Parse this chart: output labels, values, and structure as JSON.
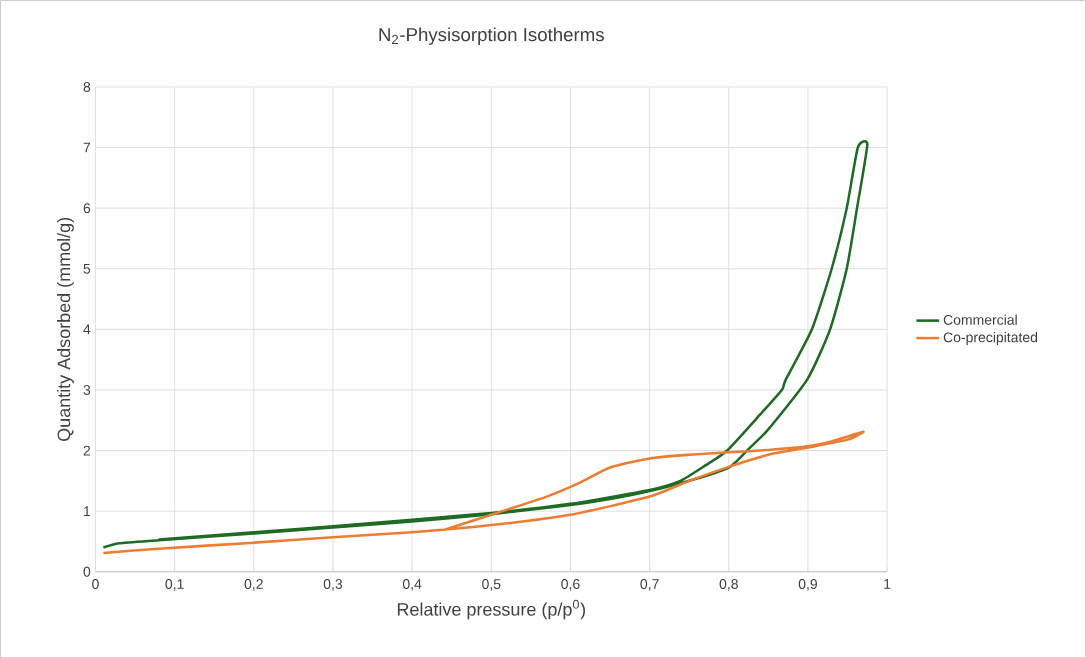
{
  "chart_data": {
    "type": "line",
    "title": "N$_{2}$-Physisorption Isotherms",
    "xlabel": "Relative pressure (p/p$^{0}$)",
    "ylabel": "Quantity Adsorbed (mmol/g)",
    "xlim": [
      0,
      1
    ],
    "ylim": [
      0,
      8
    ],
    "xticks": [
      0,
      {
        "value": 0.1,
        "label": "0,1"
      },
      {
        "value": 0.2,
        "label": "0,2"
      },
      {
        "value": 0.3,
        "label": "0,3"
      },
      {
        "value": 0.4,
        "label": "0,4"
      },
      {
        "value": 0.5,
        "label": "0,5"
      },
      {
        "value": 0.6,
        "label": "0,6"
      },
      {
        "value": 0.7,
        "label": "0,7"
      },
      {
        "value": 0.8,
        "label": "0,8"
      },
      {
        "value": 0.9,
        "label": "0,9"
      },
      1
    ],
    "yticks": [
      0,
      1,
      2,
      3,
      4,
      5,
      6,
      7,
      8
    ],
    "grid": true,
    "legend": "right",
    "marker": "none",
    "line_style": "solid",
    "series": [
      {
        "name": "Commercial",
        "color": "#1e6b24",
        "x": [
          0.01,
          0.03,
          0.08,
          0.2,
          0.3,
          0.4,
          0.5,
          0.6,
          0.65,
          0.7,
          0.75,
          0.8,
          0.823,
          0.85,
          0.899,
          0.928,
          0.949,
          0.962,
          0.975,
          0.963,
          0.949,
          0.93,
          0.905,
          0.872,
          0.867,
          0.84,
          0.798,
          0.77,
          0.739,
          0.7,
          0.6,
          0.5,
          0.3,
          0.2,
          0.08
        ],
        "values": [
          0.4,
          0.47,
          0.52,
          0.63,
          0.73,
          0.83,
          0.95,
          1.1,
          1.2,
          1.33,
          1.5,
          1.72,
          2.0,
          2.35,
          3.17,
          4.0,
          5.0,
          6.0,
          7.05,
          7.0,
          6.0,
          5.0,
          4.0,
          3.17,
          3.0,
          2.6,
          2.0,
          1.75,
          1.5,
          1.35,
          1.12,
          0.97,
          0.75,
          0.65,
          0.53
        ]
      },
      {
        "name": "Co-precipitated",
        "color": "#ed7d31",
        "x": [
          0.01,
          0.08,
          0.2,
          0.3,
          0.4,
          0.5,
          0.6,
          0.7,
          0.75,
          0.8,
          0.85,
          0.9,
          0.95,
          0.97,
          0.93,
          0.9,
          0.85,
          0.8,
          0.75,
          0.7,
          0.65,
          0.612,
          0.57,
          0.5,
          0.44
        ],
        "values": [
          0.31,
          0.38,
          0.48,
          0.57,
          0.65,
          0.77,
          0.94,
          1.24,
          1.5,
          1.73,
          1.93,
          2.05,
          2.18,
          2.31,
          2.15,
          2.07,
          2.01,
          1.97,
          1.93,
          1.87,
          1.72,
          1.47,
          1.24,
          0.94,
          0.69
        ]
      }
    ]
  }
}
